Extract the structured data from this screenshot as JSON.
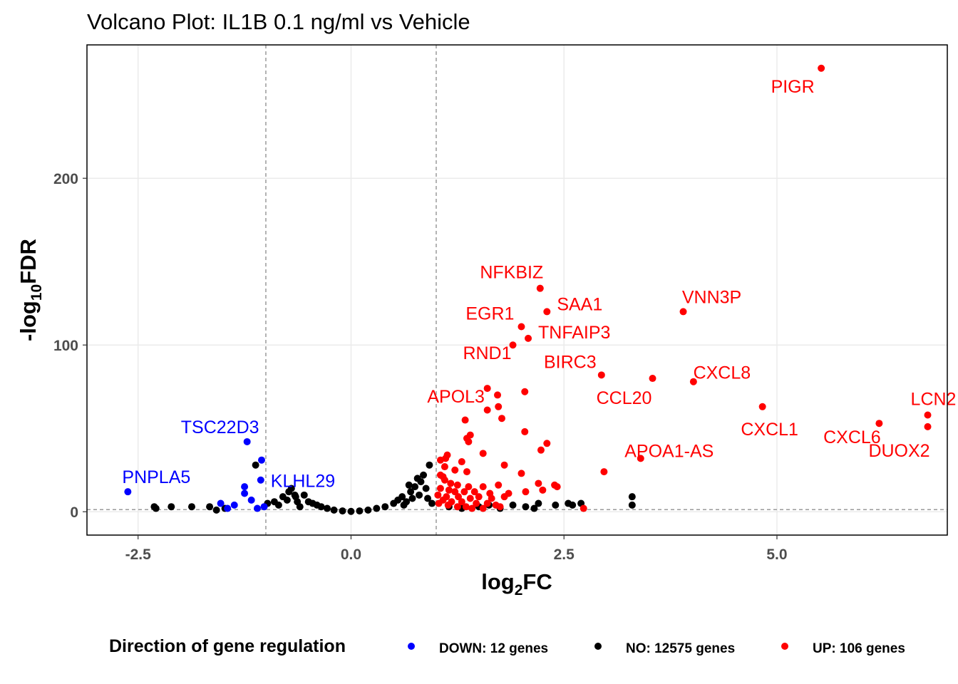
{
  "chart_data": {
    "type": "scatter",
    "title": "Volcano Plot: IL1B 0.1 ng/ml vs Vehicle",
    "xlabel": {
      "base": "log",
      "sub": "2",
      "suffix": "FC"
    },
    "ylabel": {
      "prefix": "-log",
      "sub": "10",
      "suffix": "FDR"
    },
    "xlim": [
      -3.1,
      7.0
    ],
    "ylim": [
      -14,
      280
    ],
    "x_ticks": [
      -2.5,
      0.0,
      2.5,
      5.0
    ],
    "x_tick_labels": [
      "-2.5",
      "0.0",
      "2.5",
      "5.0"
    ],
    "y_ticks": [
      0,
      100,
      200
    ],
    "y_tick_labels": [
      "0",
      "100",
      "200"
    ],
    "grid": true,
    "reference_lines": {
      "x": [
        -1,
        1
      ],
      "y": [
        1.3
      ]
    },
    "legend": {
      "position": "bottom",
      "title": "Direction of gene regulation",
      "entries": [
        {
          "label": "DOWN: 12 genes",
          "color": "#0000ff"
        },
        {
          "label": "NO: 12575 genes",
          "color": "#000000"
        },
        {
          "label": "UP: 106 genes",
          "color": "#ff0000"
        }
      ]
    },
    "series": [
      {
        "name": "DOWN",
        "color": "#0000ff",
        "points": [
          [
            -2.62,
            12
          ],
          [
            -1.53,
            5
          ],
          [
            -1.22,
            42
          ],
          [
            -1.05,
            31
          ],
          [
            -1.25,
            15
          ],
          [
            -1.25,
            11
          ],
          [
            -1.17,
            7
          ],
          [
            -1.37,
            4
          ],
          [
            -1.02,
            3
          ],
          [
            -1.1,
            2
          ],
          [
            -1.45,
            2
          ],
          [
            -1.06,
            19
          ]
        ]
      },
      {
        "name": "NO",
        "color": "#000000",
        "points": [
          [
            -2.31,
            3
          ],
          [
            -2.29,
            2
          ],
          [
            -2.11,
            3
          ],
          [
            -1.87,
            3
          ],
          [
            -1.66,
            3
          ],
          [
            -1.58,
            1
          ],
          [
            -1.48,
            2
          ],
          [
            -0.98,
            5
          ],
          [
            -0.9,
            6
          ],
          [
            -0.85,
            4
          ],
          [
            -0.73,
            12
          ],
          [
            -0.7,
            14
          ],
          [
            -0.65,
            9
          ],
          [
            -0.63,
            6
          ],
          [
            -0.55,
            10
          ],
          [
            -0.5,
            6
          ],
          [
            -0.45,
            5
          ],
          [
            -0.4,
            4
          ],
          [
            -0.35,
            3
          ],
          [
            -0.28,
            2
          ],
          [
            -0.2,
            1
          ],
          [
            -0.1,
            0.5
          ],
          [
            0.0,
            0.2
          ],
          [
            0.1,
            0.5
          ],
          [
            0.2,
            1
          ],
          [
            0.3,
            2
          ],
          [
            0.4,
            3
          ],
          [
            0.5,
            5
          ],
          [
            0.55,
            7
          ],
          [
            0.6,
            9
          ],
          [
            0.65,
            6
          ],
          [
            0.7,
            12
          ],
          [
            0.75,
            15
          ],
          [
            0.8,
            10
          ],
          [
            0.82,
            18
          ],
          [
            0.85,
            22
          ],
          [
            0.88,
            14
          ],
          [
            0.9,
            8
          ],
          [
            0.92,
            28
          ],
          [
            0.95,
            5
          ],
          [
            -0.6,
            3
          ],
          [
            -0.75,
            7
          ],
          [
            -0.8,
            9
          ],
          [
            0.62,
            4
          ],
          [
            0.72,
            8
          ],
          [
            1.15,
            3
          ],
          [
            1.3,
            2
          ],
          [
            1.5,
            3
          ],
          [
            1.62,
            4
          ],
          [
            1.75,
            2
          ],
          [
            1.9,
            4
          ],
          [
            2.05,
            3
          ],
          [
            2.15,
            2
          ],
          [
            2.2,
            5
          ],
          [
            2.4,
            4
          ],
          [
            2.55,
            5
          ],
          [
            2.6,
            4
          ],
          [
            2.7,
            5
          ],
          [
            3.3,
            4
          ],
          [
            3.3,
            9
          ],
          [
            -1.12,
            28
          ],
          [
            -0.66,
            10
          ],
          [
            0.78,
            20
          ],
          [
            0.68,
            16
          ]
        ]
      },
      {
        "name": "UP",
        "color": "#ff0000",
        "points": [
          [
            5.52,
            266
          ],
          [
            2.22,
            134
          ],
          [
            2.3,
            120
          ],
          [
            3.9,
            120
          ],
          [
            2.0,
            111
          ],
          [
            2.08,
            104
          ],
          [
            1.9,
            100
          ],
          [
            2.94,
            82
          ],
          [
            3.54,
            80
          ],
          [
            4.02,
            78
          ],
          [
            1.6,
            74
          ],
          [
            1.72,
            70
          ],
          [
            2.04,
            72
          ],
          [
            4.83,
            63
          ],
          [
            1.6,
            61
          ],
          [
            1.73,
            63
          ],
          [
            1.77,
            56
          ],
          [
            6.77,
            58
          ],
          [
            6.2,
            53
          ],
          [
            6.77,
            51
          ],
          [
            1.34,
            55
          ],
          [
            1.4,
            46
          ],
          [
            2.04,
            48
          ],
          [
            1.36,
            44
          ],
          [
            1.38,
            42
          ],
          [
            2.3,
            41
          ],
          [
            2.23,
            37
          ],
          [
            3.4,
            32
          ],
          [
            1.11,
            32
          ],
          [
            1.13,
            34
          ],
          [
            1.55,
            35
          ],
          [
            1.05,
            31
          ],
          [
            1.3,
            30
          ],
          [
            1.8,
            28
          ],
          [
            1.1,
            27
          ],
          [
            1.22,
            25
          ],
          [
            1.36,
            24
          ],
          [
            2.0,
            23
          ],
          [
            2.97,
            24
          ],
          [
            1.05,
            22
          ],
          [
            1.08,
            21
          ],
          [
            1.1,
            19
          ],
          [
            1.17,
            17
          ],
          [
            1.25,
            16
          ],
          [
            1.38,
            15
          ],
          [
            1.55,
            15
          ],
          [
            1.73,
            16
          ],
          [
            2.2,
            17
          ],
          [
            2.39,
            16
          ],
          [
            2.42,
            15
          ],
          [
            1.05,
            14
          ],
          [
            1.15,
            13
          ],
          [
            1.22,
            12
          ],
          [
            1.33,
            12
          ],
          [
            1.45,
            12
          ],
          [
            1.63,
            11
          ],
          [
            1.85,
            11
          ],
          [
            2.05,
            12
          ],
          [
            2.25,
            13
          ],
          [
            1.02,
            10
          ],
          [
            1.12,
            9
          ],
          [
            1.26,
            9
          ],
          [
            1.4,
            8
          ],
          [
            1.5,
            9
          ],
          [
            1.65,
            8
          ],
          [
            1.8,
            9
          ],
          [
            1.08,
            7
          ],
          [
            1.18,
            6
          ],
          [
            1.3,
            6
          ],
          [
            1.47,
            5
          ],
          [
            1.6,
            5
          ],
          [
            1.7,
            4
          ],
          [
            1.75,
            3
          ],
          [
            2.73,
            2
          ],
          [
            1.03,
            5
          ],
          [
            1.14,
            4
          ],
          [
            1.25,
            3
          ],
          [
            1.35,
            3
          ],
          [
            1.42,
            2
          ],
          [
            1.55,
            2
          ]
        ]
      }
    ],
    "labels": [
      {
        "text": "PIGR",
        "x": 5.52,
        "y": 266,
        "color": "#ff0000"
      },
      {
        "text": "NFKBIZ",
        "x": 2.22,
        "y": 134,
        "color": "#ff0000"
      },
      {
        "text": "SAA1",
        "x": 2.3,
        "y": 120,
        "color": "#ff0000"
      },
      {
        "text": "VNN3P",
        "x": 3.9,
        "y": 120,
        "color": "#ff0000"
      },
      {
        "text": "EGR1",
        "x": 2.0,
        "y": 111,
        "color": "#ff0000"
      },
      {
        "text": "TNFAIP3",
        "x": 2.08,
        "y": 104,
        "color": "#ff0000"
      },
      {
        "text": "RND1",
        "x": 1.9,
        "y": 100,
        "color": "#ff0000"
      },
      {
        "text": "BIRC3",
        "x": 2.94,
        "y": 82,
        "color": "#ff0000"
      },
      {
        "text": "CXCL8",
        "x": 4.02,
        "y": 78,
        "color": "#ff0000"
      },
      {
        "text": "CCL20",
        "x": 3.54,
        "y": 80,
        "color": "#ff0000"
      },
      {
        "text": "APOL3",
        "x": 1.6,
        "y": 74,
        "color": "#ff0000"
      },
      {
        "text": "CXCL1",
        "x": 4.83,
        "y": 63,
        "color": "#ff0000"
      },
      {
        "text": "CXCL6",
        "x": 6.2,
        "y": 53,
        "color": "#ff0000"
      },
      {
        "text": "LCN2",
        "x": 6.77,
        "y": 58,
        "color": "#ff0000"
      },
      {
        "text": "DUOX2",
        "x": 6.77,
        "y": 51,
        "color": "#ff0000"
      },
      {
        "text": "APOA1-AS",
        "x": 3.4,
        "y": 32,
        "color": "#ff0000"
      },
      {
        "text": "TSC22D3",
        "x": -1.22,
        "y": 42,
        "color": "#0000ff"
      },
      {
        "text": "PNPLA5",
        "x": -2.62,
        "y": 12,
        "color": "#0000ff"
      },
      {
        "text": "KLHL29",
        "x": -1.05,
        "y": 31,
        "color": "#0000ff"
      }
    ]
  }
}
